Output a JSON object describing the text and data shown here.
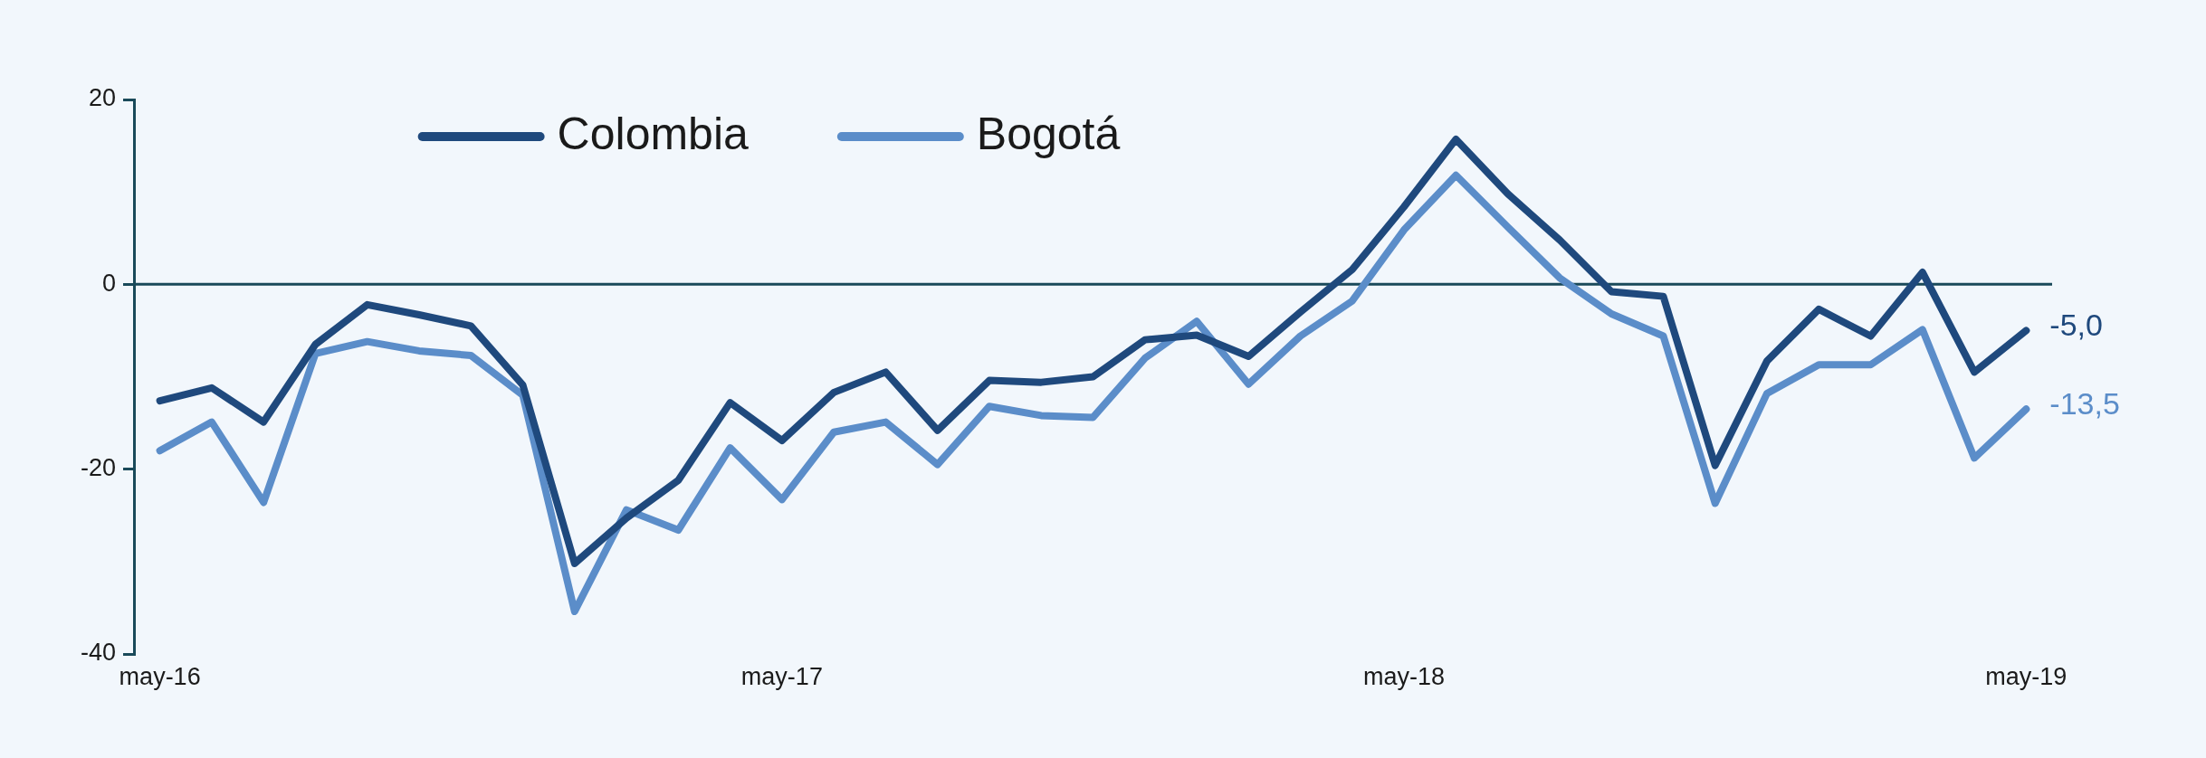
{
  "chart_data": {
    "type": "line",
    "categories": [
      "may-16",
      null,
      null,
      null,
      null,
      null,
      null,
      null,
      null,
      null,
      null,
      null,
      "may-17",
      null,
      null,
      null,
      null,
      null,
      null,
      null,
      null,
      null,
      null,
      null,
      "may-18",
      null,
      null,
      null,
      null,
      null,
      null,
      null,
      null,
      null,
      null,
      null,
      "may-19"
    ],
    "series": [
      {
        "name": "Colombia",
        "color": "#1f497d",
        "values": [
          -12.6,
          -11.2,
          -14.9,
          -6.5,
          -2.2,
          -3.3,
          -4.5,
          -10.9,
          -30.2,
          -25.3,
          -21.2,
          -12.8,
          -16.9,
          -11.7,
          -9.5,
          -15.8,
          -10.4,
          -10.6,
          -10.0,
          -6.0,
          -5.5,
          -7.8,
          -3.0,
          1.6,
          8.4,
          15.7,
          9.8,
          4.8,
          -0.8,
          -1.3,
          -19.6,
          -8.3,
          -2.7,
          -5.6,
          1.3,
          -9.5,
          -5.0
        ],
        "value_labels": [
          null,
          null,
          null,
          null,
          null,
          null,
          null,
          null,
          null,
          null,
          null,
          null,
          null,
          null,
          null,
          null,
          null,
          null,
          null,
          null,
          null,
          null,
          null,
          null,
          null,
          null,
          null,
          null,
          null,
          null,
          null,
          null,
          null,
          null,
          null,
          null,
          "-5,0"
        ]
      },
      {
        "name": "Bogotá",
        "color": "#5b8dc9",
        "values": [
          -18.0,
          -14.9,
          -23.6,
          -7.5,
          -6.2,
          -7.2,
          -7.7,
          -12.0,
          -35.4,
          -24.4,
          -26.6,
          -17.7,
          -23.3,
          -16.0,
          -14.9,
          -19.5,
          -13.2,
          -14.2,
          -14.4,
          -8.0,
          -4.0,
          -10.8,
          -5.6,
          -1.8,
          5.9,
          11.8,
          6.2,
          0.7,
          -3.2,
          -5.6,
          -23.7,
          -11.8,
          -8.7,
          -8.7,
          -4.9,
          -18.8,
          -13.5
        ],
        "value_labels": [
          null,
          null,
          null,
          null,
          null,
          null,
          null,
          null,
          null,
          null,
          null,
          null,
          null,
          null,
          null,
          null,
          null,
          null,
          null,
          null,
          null,
          null,
          null,
          null,
          null,
          null,
          null,
          null,
          null,
          null,
          null,
          null,
          null,
          null,
          null,
          null,
          "-13,5"
        ]
      }
    ],
    "ylim": [
      -40,
      20
    ],
    "yticks": [
      -40,
      -20,
      0,
      20
    ],
    "ref_lines": [
      {
        "axis": "y",
        "value": 0,
        "color": "#1a4a5a"
      }
    ],
    "legend": "top left",
    "marker": "none"
  }
}
